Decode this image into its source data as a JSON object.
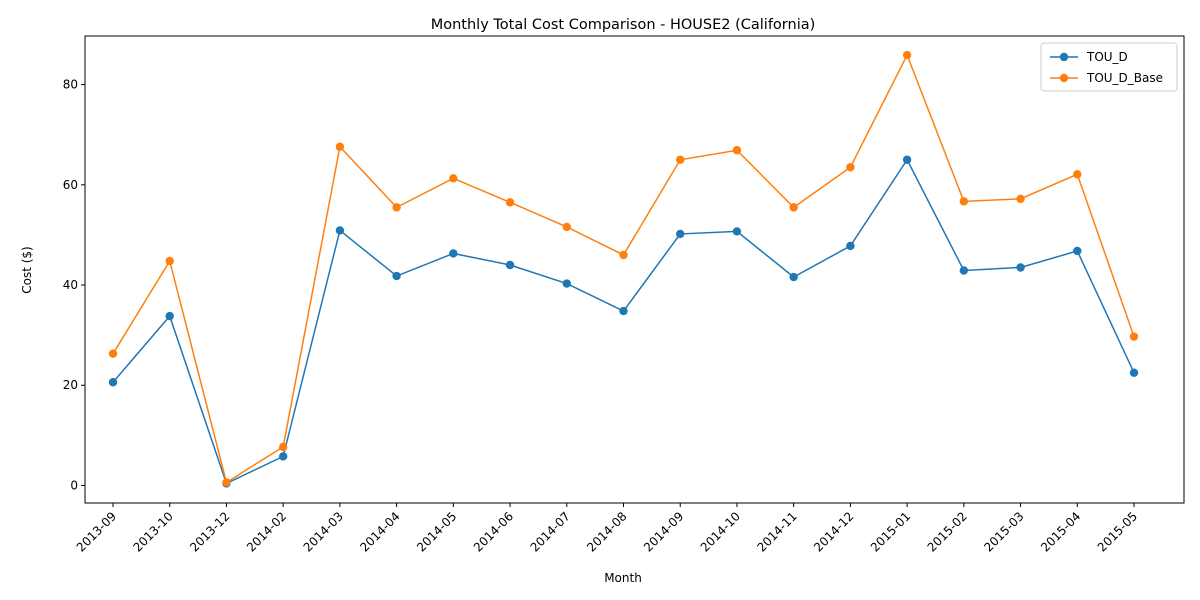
{
  "chart_data": {
    "type": "line",
    "title": "Monthly Total Cost Comparison - HOUSE2 (California)",
    "xlabel": "Month",
    "ylabel": "Cost ($)",
    "categories": [
      "2013-09",
      "2013-10",
      "2013-12",
      "2014-02",
      "2014-03",
      "2014-04",
      "2014-05",
      "2014-06",
      "2014-07",
      "2014-08",
      "2014-09",
      "2014-10",
      "2014-11",
      "2014-12",
      "2015-01",
      "2015-02",
      "2015-03",
      "2015-04",
      "2015-05"
    ],
    "ylim": [
      -3.5,
      89.7
    ],
    "yticks": [
      0,
      20,
      40,
      60,
      80
    ],
    "grid": false,
    "legend": "top-right",
    "series": [
      {
        "name": "TOU_D",
        "color": "#1f77b4",
        "values": [
          20.6,
          33.8,
          0.4,
          5.8,
          50.9,
          41.8,
          46.3,
          44.0,
          40.3,
          34.8,
          50.2,
          50.7,
          41.6,
          47.8,
          65.0,
          42.9,
          43.5,
          46.8,
          22.5
        ]
      },
      {
        "name": "TOU_D_Base",
        "color": "#ff7f0e",
        "values": [
          26.3,
          44.8,
          0.6,
          7.7,
          67.6,
          55.5,
          61.3,
          56.5,
          51.6,
          46.0,
          65.0,
          66.9,
          55.5,
          63.5,
          85.9,
          56.7,
          57.2,
          62.1,
          29.7
        ]
      }
    ]
  }
}
